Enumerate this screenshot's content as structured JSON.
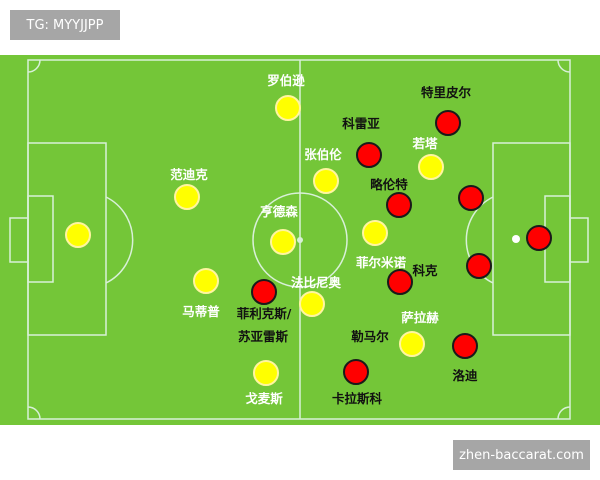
{
  "header": {
    "tag_label": "TG: MYYJJPP"
  },
  "footer": {
    "site_label": "zhen-baccarat.com"
  },
  "colors": {
    "pitch": "#74c638",
    "lines": "#d8f0d8",
    "team_yellow": "#ffff00",
    "team_red": "#ff0000"
  },
  "yellow_team": [
    {
      "name": "",
      "position": "goalkeeper"
    },
    {
      "name": "范迪克"
    },
    {
      "name": "马蒂普"
    },
    {
      "name": "罗伯逊"
    },
    {
      "name": "戈麦斯"
    },
    {
      "name": "亨德森"
    },
    {
      "name": "张伯伦"
    },
    {
      "name": "法比尼奥"
    },
    {
      "name": "若塔"
    },
    {
      "name": "菲尔米诺"
    },
    {
      "name": "萨拉赫"
    }
  ],
  "red_team": [
    {
      "name": "",
      "position": "goalkeeper"
    },
    {
      "name": "特里皮尔"
    },
    {
      "name": "科雷亚"
    },
    {
      "name": "略伦特"
    },
    {
      "name": ""
    },
    {
      "name": "科克"
    },
    {
      "name": ""
    },
    {
      "name": "菲利克斯/"
    },
    {
      "name": "苏亚雷斯"
    },
    {
      "name": "勒马尔"
    },
    {
      "name": "卡拉斯科"
    },
    {
      "name": "洛迪"
    }
  ]
}
